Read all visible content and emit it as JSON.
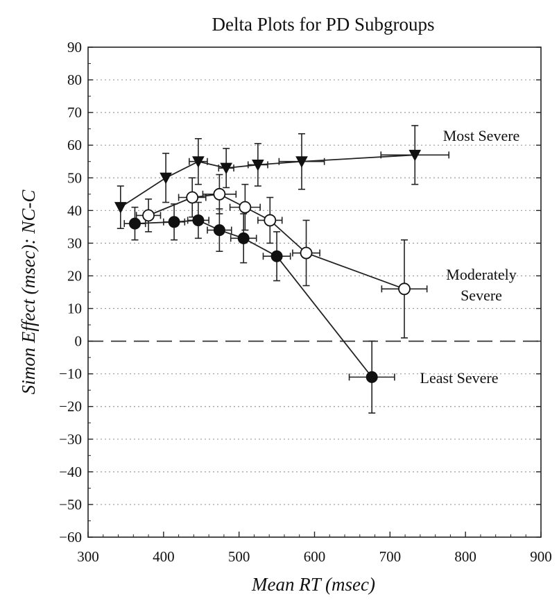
{
  "chart_data": {
    "type": "scatter",
    "title": "Delta Plots for PD Subgroups",
    "xlabel": "Mean RT (msec)",
    "ylabel": "Simon Effect (msec): NC-C",
    "xlim": [
      300,
      900
    ],
    "ylim": [
      -60,
      90
    ],
    "x_ticks": [
      300,
      400,
      500,
      600,
      700,
      800,
      900
    ],
    "y_ticks": [
      90,
      80,
      70,
      60,
      50,
      40,
      30,
      20,
      10,
      0,
      -10,
      -20,
      -30,
      -40,
      -50,
      -60
    ],
    "grid": "horizontal dotted",
    "reference_line": {
      "y": 0,
      "style": "dashed"
    },
    "series": [
      {
        "name": "Most Severe",
        "label_lines": [
          "Most Severe"
        ],
        "marker": "filled-triangle-down",
        "points": [
          {
            "x": 343,
            "y": 41,
            "xerr": 0,
            "yerr": 6.5
          },
          {
            "x": 403,
            "y": 50,
            "xerr": 0,
            "yerr": 7.5
          },
          {
            "x": 446,
            "y": 55,
            "xerr": 12,
            "yerr": 7
          },
          {
            "x": 483,
            "y": 53,
            "xerr": 10,
            "yerr": 6
          },
          {
            "x": 525,
            "y": 54,
            "xerr": 13,
            "yerr": 6.5
          },
          {
            "x": 583,
            "y": 55,
            "xerr": 30,
            "yerr": 8.5
          },
          {
            "x": 733,
            "y": 57,
            "xerr": 45,
            "yerr": 9
          }
        ]
      },
      {
        "name": "Moderately Severe",
        "label_lines": [
          "Moderately",
          "Severe"
        ],
        "marker": "open-circle",
        "points": [
          {
            "x": 380,
            "y": 38.5,
            "xerr": 16,
            "yerr": 5
          },
          {
            "x": 438,
            "y": 44,
            "xerr": 18,
            "yerr": 6
          },
          {
            "x": 474,
            "y": 45,
            "xerr": 22,
            "yerr": 6
          },
          {
            "x": 508,
            "y": 41,
            "xerr": 20,
            "yerr": 7
          },
          {
            "x": 541,
            "y": 37,
            "xerr": 16,
            "yerr": 7
          },
          {
            "x": 589,
            "y": 27,
            "xerr": 18,
            "yerr": 10
          },
          {
            "x": 719,
            "y": 16,
            "xerr": 30,
            "yerr": 15
          }
        ]
      },
      {
        "name": "Least Severe",
        "label_lines": [
          "Least Severe"
        ],
        "marker": "filled-circle",
        "points": [
          {
            "x": 362,
            "y": 36,
            "xerr": 14,
            "yerr": 5
          },
          {
            "x": 414,
            "y": 36.5,
            "xerr": 14,
            "yerr": 5.5
          },
          {
            "x": 446,
            "y": 37,
            "xerr": 14,
            "yerr": 5.5
          },
          {
            "x": 474,
            "y": 34,
            "xerr": 16,
            "yerr": 6.5
          },
          {
            "x": 506,
            "y": 31.5,
            "xerr": 17,
            "yerr": 7.5
          },
          {
            "x": 550,
            "y": 26,
            "xerr": 18,
            "yerr": 7.5
          },
          {
            "x": 676,
            "y": -11,
            "xerr": 30,
            "yerr": 11
          }
        ]
      }
    ]
  }
}
